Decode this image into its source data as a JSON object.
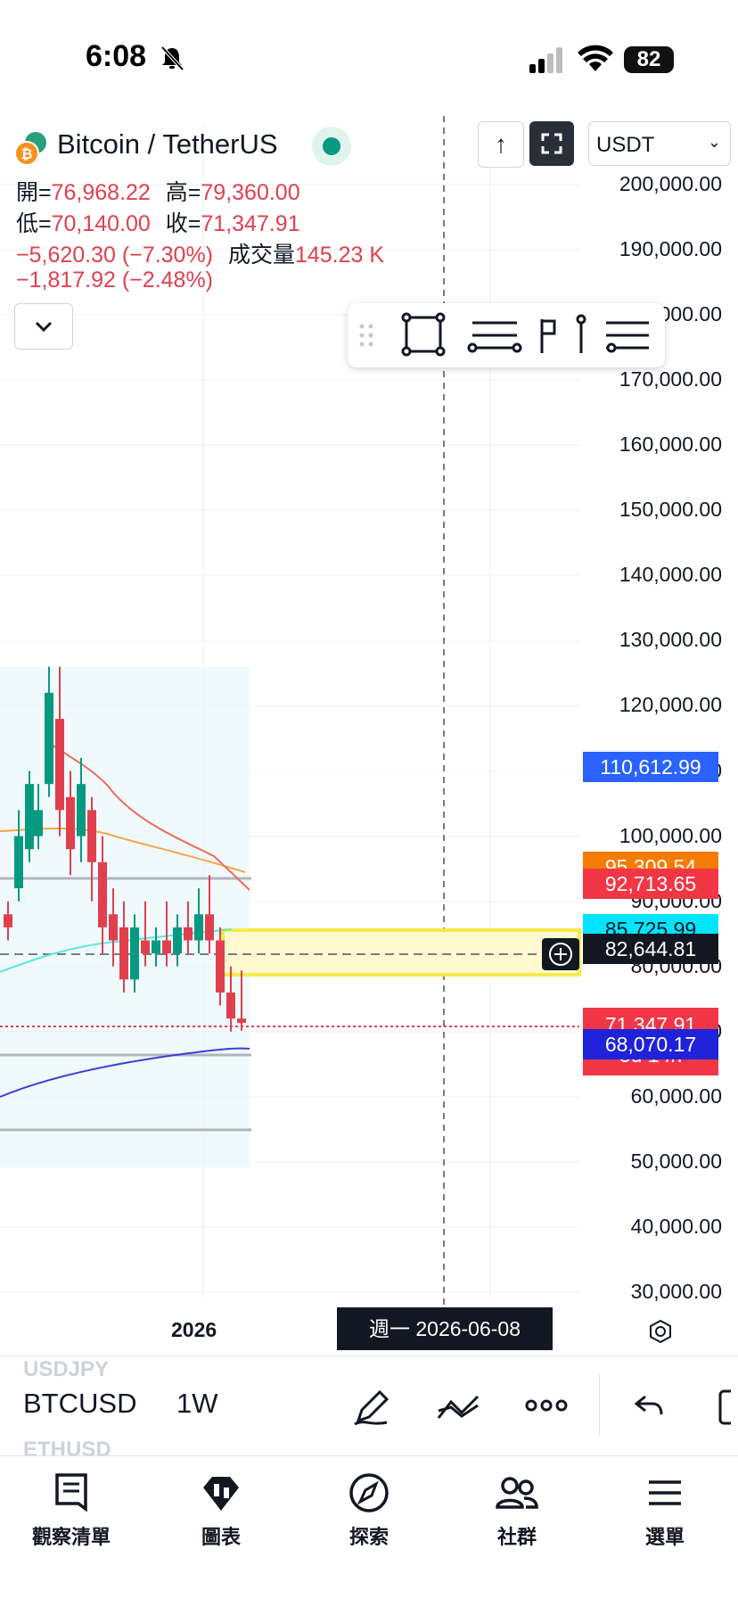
{
  "status_bar": {
    "time": "6:08",
    "battery": "82"
  },
  "legend": {
    "title": "Bitcoin / TetherUS",
    "open_label": "開=",
    "open": "76,968.22",
    "high_label": "高=",
    "high": "79,360.00",
    "low_label": "低=",
    "low": "70,140.00",
    "close_label": "收=",
    "close": "71,347.91",
    "change": "−5,620.30 (−7.30%)",
    "volume_label": "成交量",
    "volume": "145.23 K",
    "change2": "−1,817.92 (−2.48%)"
  },
  "header": {
    "currency": "USDT"
  },
  "colors": {
    "red": "#e0404e",
    "green": "#089981",
    "accent_blue": "#2962ff",
    "highlight": "#f7ea4a"
  },
  "chart_data": {
    "type": "candlestick",
    "y_axis_ticks": [
      "200,000.00",
      "190,000.00",
      "180,000.00",
      "170,000.00",
      "160,000.00",
      "150,000.00",
      "140,000.00",
      "130,000.00",
      "120,000.00",
      "110,000.00",
      "100,000.00",
      "90,000.00",
      "80,000.00",
      "70,000.00",
      "60,000.00",
      "50,000.00",
      "40,000.00",
      "30,000.00"
    ],
    "price_tags": [
      {
        "value": "110,612.99",
        "color": "#2962ff"
      },
      {
        "value": "95,309.54",
        "color": "#f57c00"
      },
      {
        "value": "92,713.65",
        "color": "#f23645"
      },
      {
        "value": "85,725.99",
        "color": "#00e5ff"
      },
      {
        "value": "82,644.81",
        "color": "#131722"
      },
      {
        "value": "71,347.91",
        "sub": "3d 14h",
        "color": "#f23645"
      },
      {
        "value": "68,070.17",
        "color": "#1e22d8"
      }
    ],
    "x_label": "2026",
    "crosshair_date": "週一 2026-06-08",
    "ylim": [
      30000,
      200000
    ]
  },
  "bottom_toolbar": {
    "symbol": "BTCUSD",
    "interval": "1W",
    "ghost_above": "USDJPY",
    "ghost_below": "ETHUSD"
  },
  "tabs": [
    {
      "label": "觀察清單",
      "icon": "watchlist-icon"
    },
    {
      "label": "圖表",
      "icon": "chart-icon"
    },
    {
      "label": "探索",
      "icon": "compass-icon"
    },
    {
      "label": "社群",
      "icon": "community-icon"
    },
    {
      "label": "選單",
      "icon": "menu-icon"
    }
  ]
}
